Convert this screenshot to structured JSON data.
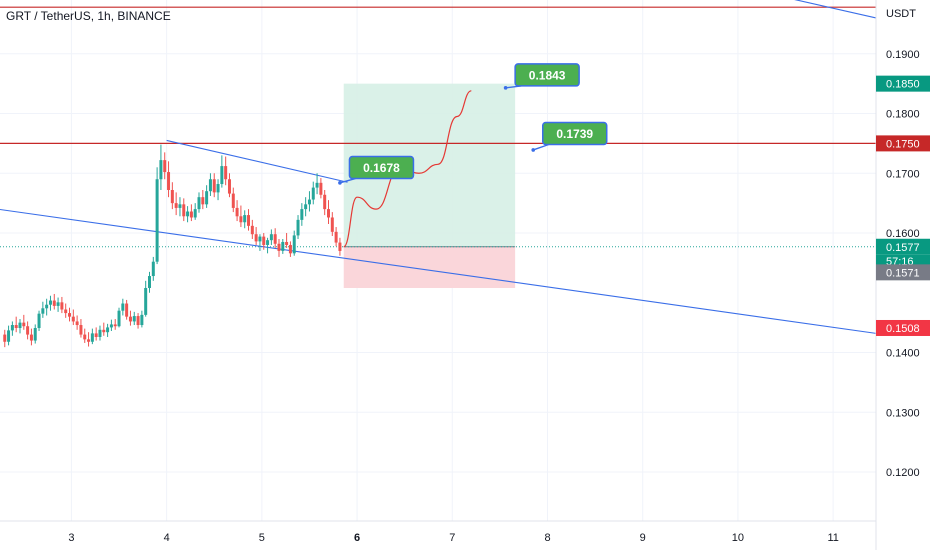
{
  "symbol": {
    "title": "GRT / TetherUS, 1h, BINANCE"
  },
  "price_axis": {
    "currency": "USDT"
  },
  "colors": {
    "up": "#26a69a",
    "down": "#ef5350",
    "trendline": "#3a6ee8",
    "resistance": "#c62828",
    "target_fill": "#d6efe6",
    "stop_fill": "#fad4d8",
    "callout": "#4caf50",
    "forecast": "#e53935"
  },
  "chart_data": {
    "type": "candlestick",
    "title": "GRT / TetherUS, 1h, BINANCE",
    "y_unit": "USDT",
    "ylim": [
      0.1118,
      0.199
    ],
    "y_ticks": [
      "0.1900",
      "0.1800",
      "0.1700",
      "0.1600",
      "0.1400",
      "0.1300",
      "0.1200"
    ],
    "x_ticks": [
      "3",
      "4",
      "5",
      "6",
      "7",
      "8",
      "9",
      "10",
      "11"
    ],
    "x_range_days": [
      2.25,
      11.45
    ],
    "candles": [
      [
        2.3,
        0.143,
        0.1438,
        0.1409,
        0.1418
      ],
      [
        2.34,
        0.1418,
        0.1445,
        0.1412,
        0.1437
      ],
      [
        2.38,
        0.1437,
        0.1452,
        0.1428,
        0.1446
      ],
      [
        2.42,
        0.1446,
        0.146,
        0.1434,
        0.1441
      ],
      [
        2.46,
        0.1441,
        0.1456,
        0.1432,
        0.145
      ],
      [
        2.5,
        0.145,
        0.1463,
        0.1438,
        0.1444
      ],
      [
        2.54,
        0.1444,
        0.1452,
        0.1422,
        0.143
      ],
      [
        2.58,
        0.143,
        0.144,
        0.1412,
        0.142
      ],
      [
        2.62,
        0.142,
        0.1447,
        0.1415,
        0.1441
      ],
      [
        2.66,
        0.1441,
        0.147,
        0.1436,
        0.1465
      ],
      [
        2.7,
        0.1465,
        0.1485,
        0.1458,
        0.1474
      ],
      [
        2.74,
        0.1474,
        0.149,
        0.1462,
        0.148
      ],
      [
        2.78,
        0.148,
        0.1495,
        0.147,
        0.1487
      ],
      [
        2.82,
        0.1487,
        0.1498,
        0.1472,
        0.1478
      ],
      [
        2.86,
        0.1478,
        0.1492,
        0.1468,
        0.1484
      ],
      [
        2.9,
        0.1484,
        0.1493,
        0.1466,
        0.1472
      ],
      [
        2.94,
        0.1472,
        0.1482,
        0.1458,
        0.1466
      ],
      [
        2.98,
        0.1466,
        0.1475,
        0.1452,
        0.146
      ],
      [
        3.02,
        0.146,
        0.1472,
        0.1446,
        0.1452
      ],
      [
        3.06,
        0.1452,
        0.1462,
        0.1438,
        0.1446
      ],
      [
        3.1,
        0.1446,
        0.1456,
        0.1425,
        0.143
      ],
      [
        3.14,
        0.143,
        0.144,
        0.1416,
        0.1422
      ],
      [
        3.18,
        0.1422,
        0.1434,
        0.141,
        0.1418
      ],
      [
        3.22,
        0.1418,
        0.144,
        0.1414,
        0.1432
      ],
      [
        3.26,
        0.1432,
        0.1442,
        0.142,
        0.1426
      ],
      [
        3.3,
        0.1426,
        0.1445,
        0.142,
        0.1438
      ],
      [
        3.34,
        0.1438,
        0.145,
        0.1428,
        0.1434
      ],
      [
        3.38,
        0.1434,
        0.1448,
        0.1426,
        0.1442
      ],
      [
        3.42,
        0.1442,
        0.1455,
        0.1436,
        0.1447
      ],
      [
        3.46,
        0.1447,
        0.1456,
        0.1438,
        0.1444
      ],
      [
        3.5,
        0.1444,
        0.1475,
        0.1442,
        0.147
      ],
      [
        3.54,
        0.147,
        0.149,
        0.1462,
        0.1482
      ],
      [
        3.58,
        0.1482,
        0.1488,
        0.1455,
        0.146
      ],
      [
        3.62,
        0.146,
        0.147,
        0.1445,
        0.1452
      ],
      [
        3.66,
        0.1452,
        0.1468,
        0.1446,
        0.1461
      ],
      [
        3.7,
        0.1461,
        0.1466,
        0.144,
        0.1446
      ],
      [
        3.74,
        0.1446,
        0.147,
        0.1442,
        0.1463
      ],
      [
        3.78,
        0.1463,
        0.152,
        0.146,
        0.1508
      ],
      [
        3.82,
        0.1508,
        0.1535,
        0.15,
        0.1528
      ],
      [
        3.86,
        0.1528,
        0.156,
        0.152,
        0.1552
      ],
      [
        3.9,
        0.1552,
        0.171,
        0.1548,
        0.169
      ],
      [
        3.94,
        0.169,
        0.1748,
        0.1672,
        0.1722
      ],
      [
        3.98,
        0.1722,
        0.1735,
        0.169,
        0.1702
      ],
      [
        4.02,
        0.1702,
        0.172,
        0.166,
        0.1672
      ],
      [
        4.06,
        0.1672,
        0.1685,
        0.164,
        0.165
      ],
      [
        4.1,
        0.165,
        0.1668,
        0.163,
        0.1642
      ],
      [
        4.14,
        0.1642,
        0.166,
        0.1628,
        0.1648
      ],
      [
        4.18,
        0.1648,
        0.1658,
        0.162,
        0.1628
      ],
      [
        4.22,
        0.1628,
        0.1645,
        0.1618,
        0.1636
      ],
      [
        4.26,
        0.1636,
        0.1648,
        0.162,
        0.1626
      ],
      [
        4.3,
        0.1626,
        0.165,
        0.1622,
        0.164
      ],
      [
        4.34,
        0.164,
        0.1668,
        0.1634,
        0.166
      ],
      [
        4.38,
        0.166,
        0.1672,
        0.164,
        0.1648
      ],
      [
        4.42,
        0.1648,
        0.168,
        0.1642,
        0.167
      ],
      [
        4.46,
        0.167,
        0.17,
        0.1662,
        0.169
      ],
      [
        4.5,
        0.169,
        0.17,
        0.166,
        0.1668
      ],
      [
        4.54,
        0.1668,
        0.169,
        0.1655,
        0.1682
      ],
      [
        4.58,
        0.1682,
        0.173,
        0.1676,
        0.1712
      ],
      [
        4.62,
        0.1712,
        0.1728,
        0.168,
        0.169
      ],
      [
        4.66,
        0.169,
        0.17,
        0.166,
        0.1666
      ],
      [
        4.7,
        0.1666,
        0.1676,
        0.1635,
        0.1642
      ],
      [
        4.74,
        0.1642,
        0.1655,
        0.162,
        0.1628
      ],
      [
        4.78,
        0.1628,
        0.1646,
        0.161,
        0.1618
      ],
      [
        4.82,
        0.1618,
        0.1638,
        0.1608,
        0.163
      ],
      [
        4.86,
        0.163,
        0.164,
        0.1604,
        0.1612
      ],
      [
        4.9,
        0.1612,
        0.1622,
        0.159,
        0.1598
      ],
      [
        4.94,
        0.1598,
        0.161,
        0.158,
        0.1586
      ],
      [
        4.98,
        0.1586,
        0.1598,
        0.157,
        0.1594
      ],
      [
        5.02,
        0.1594,
        0.16,
        0.1572,
        0.158
      ],
      [
        5.06,
        0.158,
        0.1592,
        0.1566,
        0.1588
      ],
      [
        5.1,
        0.1588,
        0.1606,
        0.158,
        0.1598
      ],
      [
        5.14,
        0.1598,
        0.1608,
        0.1575,
        0.1582
      ],
      [
        5.18,
        0.1582,
        0.159,
        0.156,
        0.157
      ],
      [
        5.22,
        0.157,
        0.159,
        0.1565,
        0.1585
      ],
      [
        5.26,
        0.1585,
        0.16,
        0.1575,
        0.158
      ],
      [
        5.3,
        0.158,
        0.1586,
        0.156,
        0.1566
      ],
      [
        5.34,
        0.1566,
        0.1604,
        0.1562,
        0.1596
      ],
      [
        5.38,
        0.1596,
        0.163,
        0.159,
        0.1622
      ],
      [
        5.42,
        0.1622,
        0.165,
        0.1612,
        0.164
      ],
      [
        5.46,
        0.164,
        0.166,
        0.1628,
        0.1648
      ],
      [
        5.5,
        0.1648,
        0.167,
        0.1636,
        0.1656
      ],
      [
        5.54,
        0.1656,
        0.1686,
        0.1648,
        0.1676
      ],
      [
        5.58,
        0.1676,
        0.17,
        0.1665,
        0.1684
      ],
      [
        5.62,
        0.1684,
        0.1692,
        0.1658,
        0.1664
      ],
      [
        5.66,
        0.1664,
        0.1672,
        0.163,
        0.164
      ],
      [
        5.7,
        0.164,
        0.1655,
        0.1615,
        0.1626
      ],
      [
        5.74,
        0.1626,
        0.1635,
        0.1595,
        0.1602
      ],
      [
        5.78,
        0.1602,
        0.161,
        0.1578,
        0.1584
      ],
      [
        5.82,
        0.1584,
        0.1592,
        0.1562,
        0.157
      ]
    ],
    "annotations": {
      "upper_channel": [
        [
          4.0,
          0.1755
        ],
        [
          5.9,
          0.1685
        ]
      ],
      "lower_channel": [
        [
          2.0,
          0.1645
        ],
        [
          11.45,
          0.1432
        ]
      ],
      "top_right_line": [
        [
          10.2,
          0.2005
        ],
        [
          11.45,
          0.196
        ]
      ],
      "resistance_levels": [
        0.175,
        0.1978
      ],
      "position": {
        "x_start": 5.86,
        "x_end": 7.66,
        "target": 0.185,
        "entry": 0.1577,
        "stop": 0.1508
      },
      "forecast_path": [
        [
          5.86,
          0.1577
        ],
        [
          6.0,
          0.166
        ],
        [
          6.2,
          0.164
        ],
        [
          6.45,
          0.171
        ],
        [
          6.65,
          0.17
        ],
        [
          6.85,
          0.1715
        ],
        [
          7.05,
          0.1795
        ],
        [
          7.2,
          0.1838
        ]
      ],
      "callouts": [
        {
          "label": "0.1678",
          "box": [
            5.92,
            0.1728
          ],
          "tip": [
            5.82,
            0.1684
          ]
        },
        {
          "label": "0.1843",
          "box": [
            7.66,
            0.1883
          ],
          "tip": [
            7.56,
            0.1843
          ]
        },
        {
          "label": "0.1739",
          "box": [
            7.95,
            0.1785
          ],
          "tip": [
            7.85,
            0.1739
          ]
        }
      ]
    },
    "price_badges": [
      {
        "label": "0.1850",
        "value": 0.185,
        "color": "#089981"
      },
      {
        "label": "0.1750",
        "value": 0.175,
        "color": "#c62828"
      },
      {
        "label": "0.1577",
        "value": 0.1577,
        "color": "#089981"
      },
      {
        "label": "57:16",
        "value": 0.1577,
        "color": "#089981"
      },
      {
        "label": "0.1571",
        "value": 0.1571,
        "color": "#787b86"
      },
      {
        "label": "0.1508",
        "value": 0.1508,
        "color": "#f23645"
      }
    ]
  }
}
